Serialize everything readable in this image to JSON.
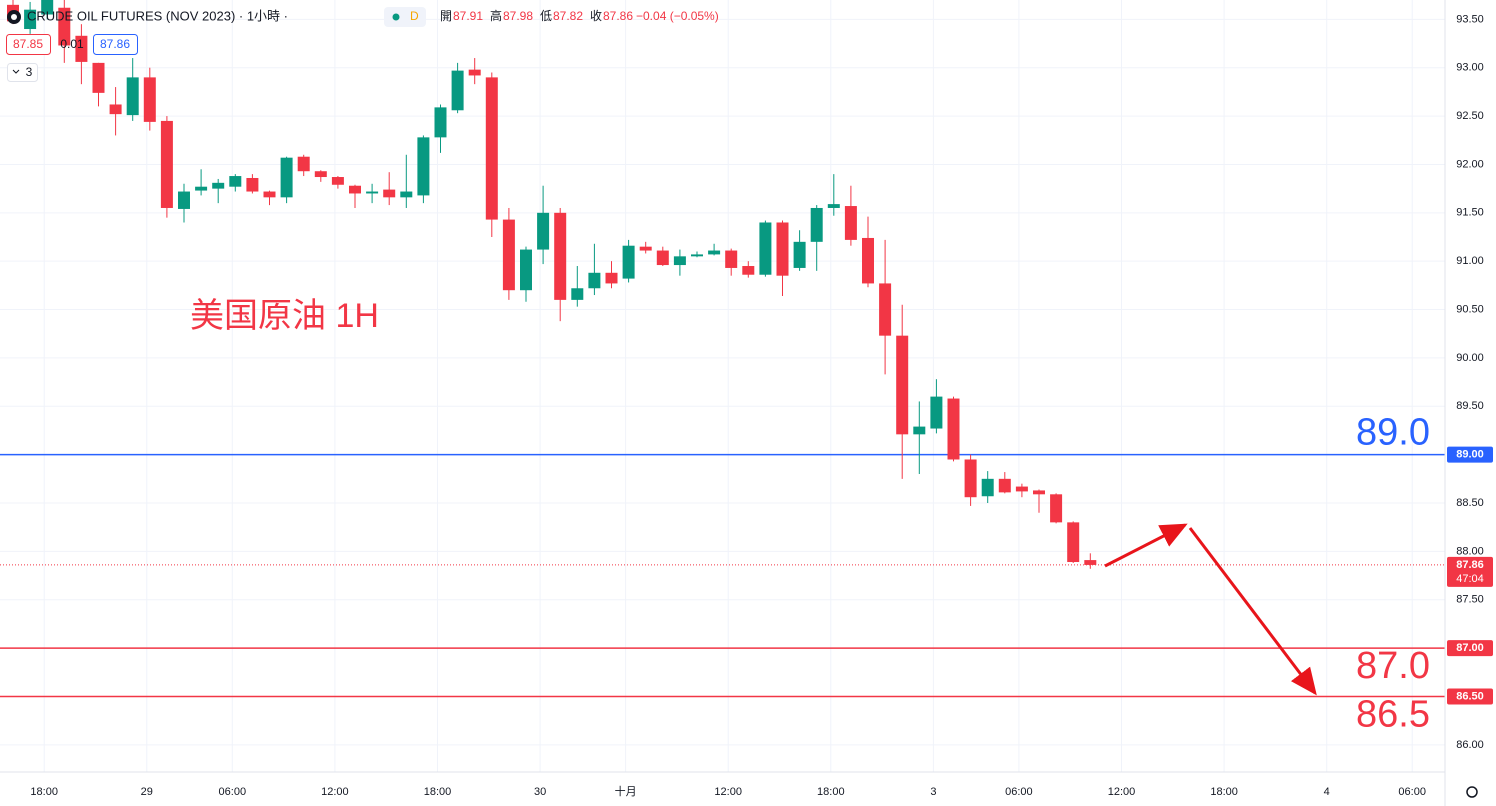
{
  "header": {
    "symbol": "CRUDE OIL FUTURES (NOV 2023) · 1小時 ·",
    "badge": "D",
    "bid": "87.85",
    "spread": "0.01",
    "ask": "87.86",
    "indicators": "3",
    "ohlc_legend": [
      {
        "label": "開",
        "value": "87.91"
      },
      {
        "label": "高",
        "value": "87.98"
      },
      {
        "label": "低",
        "value": "87.82"
      },
      {
        "label": "收",
        "value": "87.86"
      }
    ],
    "change": "−0.04 (−0.05%)"
  },
  "chart_data": {
    "type": "candlestick",
    "annotation": "美国原油 1H",
    "up_color": "#089981",
    "down_color": "#f23645",
    "grid": true,
    "categories": [
      null,
      null,
      "18:00",
      null,
      null,
      null,
      null,
      null,
      "29",
      null,
      null,
      null,
      null,
      "06:00",
      null,
      null,
      null,
      null,
      null,
      "12:00",
      null,
      null,
      null,
      null,
      null,
      "18:00",
      null,
      null,
      null,
      null,
      null,
      "30",
      null,
      null,
      null,
      null,
      "十月",
      null,
      null,
      null,
      null,
      null,
      "12:00",
      null,
      null,
      null,
      null,
      null,
      "18:00",
      null,
      null,
      null,
      null,
      null,
      "3",
      null,
      null,
      null,
      null,
      "06:00",
      null,
      null,
      null,
      null,
      null,
      "12:00",
      null,
      null,
      null,
      null,
      null,
      "18:00",
      null,
      null,
      null,
      null,
      null,
      "4",
      null,
      null,
      null,
      null,
      "06:00",
      null
    ],
    "open": [
      93.65,
      93.4,
      93.55,
      93.62,
      93.33,
      93.05,
      92.62,
      92.51,
      92.9,
      92.45,
      91.54,
      91.73,
      91.75,
      91.77,
      91.86,
      91.72,
      91.66,
      92.08,
      91.93,
      91.87,
      91.78,
      91.7,
      91.74,
      91.66,
      91.68,
      92.28,
      92.56,
      92.98,
      92.9,
      91.43,
      90.7,
      91.12,
      91.5,
      90.6,
      90.72,
      90.88,
      90.82,
      91.15,
      91.11,
      90.96,
      91.05,
      91.07,
      91.11,
      90.95,
      90.86,
      91.4,
      90.93,
      91.2,
      91.55,
      91.57,
      91.24,
      90.77,
      90.23,
      89.21,
      89.27,
      89.58,
      88.95,
      88.57,
      88.75,
      88.67,
      88.63,
      88.59,
      88.3,
      87.91,
      null,
      null,
      null,
      null,
      null,
      null,
      null,
      null,
      null,
      null,
      null,
      null,
      null,
      null,
      null,
      null,
      null,
      null,
      null,
      null
    ],
    "high": [
      93.72,
      93.68,
      93.72,
      93.7,
      93.45,
      93.05,
      92.8,
      93.1,
      93.0,
      92.5,
      91.8,
      91.95,
      91.85,
      91.9,
      91.9,
      91.73,
      92.08,
      92.1,
      91.94,
      91.88,
      91.79,
      91.8,
      91.92,
      92.1,
      92.3,
      92.62,
      93.05,
      93.1,
      92.95,
      91.55,
      91.15,
      91.78,
      91.55,
      90.95,
      91.18,
      91.0,
      91.22,
      91.2,
      91.15,
      91.12,
      91.1,
      91.18,
      91.13,
      91.0,
      91.42,
      91.42,
      91.32,
      91.58,
      91.9,
      91.78,
      91.46,
      91.22,
      90.55,
      89.55,
      89.78,
      89.6,
      89.0,
      88.83,
      88.82,
      88.7,
      88.64,
      88.6,
      88.31,
      87.98,
      null,
      null,
      null,
      null,
      null,
      null,
      null,
      null,
      null,
      null,
      null,
      null,
      null,
      null,
      null,
      null,
      null,
      null,
      null,
      null
    ],
    "low": [
      93.45,
      93.35,
      93.5,
      93.05,
      92.83,
      92.6,
      92.3,
      92.45,
      92.35,
      91.45,
      91.4,
      91.68,
      91.6,
      91.72,
      91.7,
      91.58,
      91.6,
      91.88,
      91.82,
      91.75,
      91.55,
      91.6,
      91.58,
      91.55,
      91.6,
      92.12,
      92.53,
      92.83,
      91.25,
      90.6,
      90.58,
      90.97,
      90.38,
      90.53,
      90.65,
      90.72,
      90.78,
      91.08,
      90.95,
      90.85,
      91.04,
      91.06,
      90.85,
      90.83,
      90.84,
      90.64,
      90.9,
      90.9,
      91.47,
      91.16,
      90.73,
      89.83,
      88.75,
      88.8,
      89.22,
      88.93,
      88.47,
      88.5,
      88.6,
      88.56,
      88.4,
      88.29,
      87.88,
      87.82,
      null,
      null,
      null,
      null,
      null,
      null,
      null,
      null,
      null,
      null,
      null,
      null,
      null,
      null,
      null,
      null,
      null,
      null,
      null,
      null
    ],
    "close": [
      93.48,
      93.6,
      93.7,
      93.23,
      93.06,
      92.74,
      92.52,
      92.9,
      92.44,
      91.55,
      91.72,
      91.77,
      91.81,
      91.88,
      91.72,
      91.66,
      92.07,
      91.93,
      91.87,
      91.79,
      91.7,
      91.72,
      91.66,
      91.72,
      92.28,
      92.59,
      92.97,
      92.92,
      91.43,
      90.7,
      91.12,
      91.5,
      90.6,
      90.72,
      90.88,
      90.77,
      91.16,
      91.11,
      90.96,
      91.05,
      91.07,
      91.11,
      90.93,
      90.86,
      91.4,
      90.85,
      91.2,
      91.55,
      91.59,
      91.22,
      90.77,
      90.23,
      89.21,
      89.29,
      89.6,
      88.95,
      88.56,
      88.75,
      88.61,
      88.62,
      88.59,
      88.3,
      87.89,
      87.86,
      null,
      null,
      null,
      null,
      null,
      null,
      null,
      null,
      null,
      null,
      null,
      null,
      null,
      null,
      null,
      null,
      null,
      null,
      null,
      null
    ],
    "ylim": [
      85.74,
      93.7
    ],
    "yticks": [
      {
        "value": 86,
        "label": "86.00"
      },
      {
        "value": 86.5,
        "label": "86.50"
      },
      {
        "value": 87,
        "label": "87.00"
      },
      {
        "value": 87.5,
        "label": "87.50"
      },
      {
        "value": 88,
        "label": "88.00"
      },
      {
        "value": 88.5,
        "label": "88.50"
      },
      {
        "value": 89,
        "label": "89.00"
      },
      {
        "value": 89.5,
        "label": "89.50"
      },
      {
        "value": 90,
        "label": "90.00"
      },
      {
        "value": 90.5,
        "label": "90.50"
      },
      {
        "value": 91,
        "label": "91.00"
      },
      {
        "value": 91.5,
        "label": "91.50"
      },
      {
        "value": 92,
        "label": "92.00"
      },
      {
        "value": 92.5,
        "label": "92.50"
      },
      {
        "value": 93,
        "label": "93.00"
      },
      {
        "value": 93.5,
        "label": "93.50"
      }
    ],
    "levels": [
      {
        "value": 89,
        "label": "89.0",
        "tag": "89.00",
        "color": "#2962ff"
      },
      {
        "value": 87,
        "label": "87.0",
        "tag": "87.00",
        "color": "#f23645"
      },
      {
        "value": 86.5,
        "label": "86.5",
        "tag": "86.50",
        "color": "#f23645"
      }
    ],
    "last_price": {
      "value": 87.86,
      "countdown": "47:04",
      "color": "#f23645"
    }
  }
}
